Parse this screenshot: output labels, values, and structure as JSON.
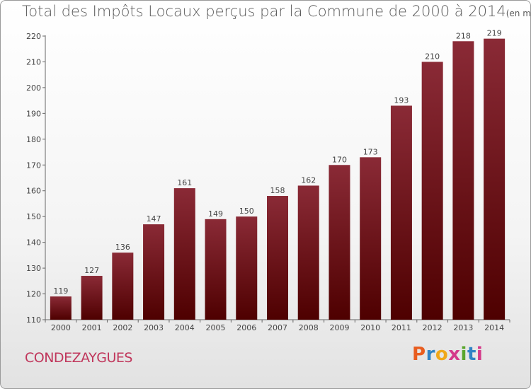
{
  "header": {
    "title": "Total des Impôts Locaux perçus par la Commune de 2000 à 2014",
    "unit_note": "(en milliers d'€)"
  },
  "footer": {
    "commune": "CONDEZAYGUES",
    "logo_letters": [
      "P",
      "r",
      "o",
      "x",
      "i",
      "t",
      "i"
    ],
    "logo_colors": [
      "#e85d1f",
      "#2f83c5",
      "#f0a81a",
      "#d43a8a",
      "#5aa62c",
      "#2f83c5",
      "#d43a8a"
    ]
  },
  "chart_data": {
    "type": "bar",
    "categories": [
      "2000",
      "2001",
      "2002",
      "2003",
      "2004",
      "2005",
      "2006",
      "2007",
      "2008",
      "2009",
      "2010",
      "2011",
      "2012",
      "2013",
      "2014"
    ],
    "values": [
      119,
      127,
      136,
      147,
      161,
      149,
      150,
      158,
      162,
      170,
      173,
      193,
      210,
      218,
      219
    ],
    "ylim": [
      110,
      220
    ],
    "yticks": [
      110,
      120,
      130,
      140,
      150,
      160,
      170,
      180,
      190,
      200,
      210,
      220
    ],
    "grid": false,
    "bar_color_top": "#8a2a36",
    "bar_color_bottom": "#4e0000"
  }
}
